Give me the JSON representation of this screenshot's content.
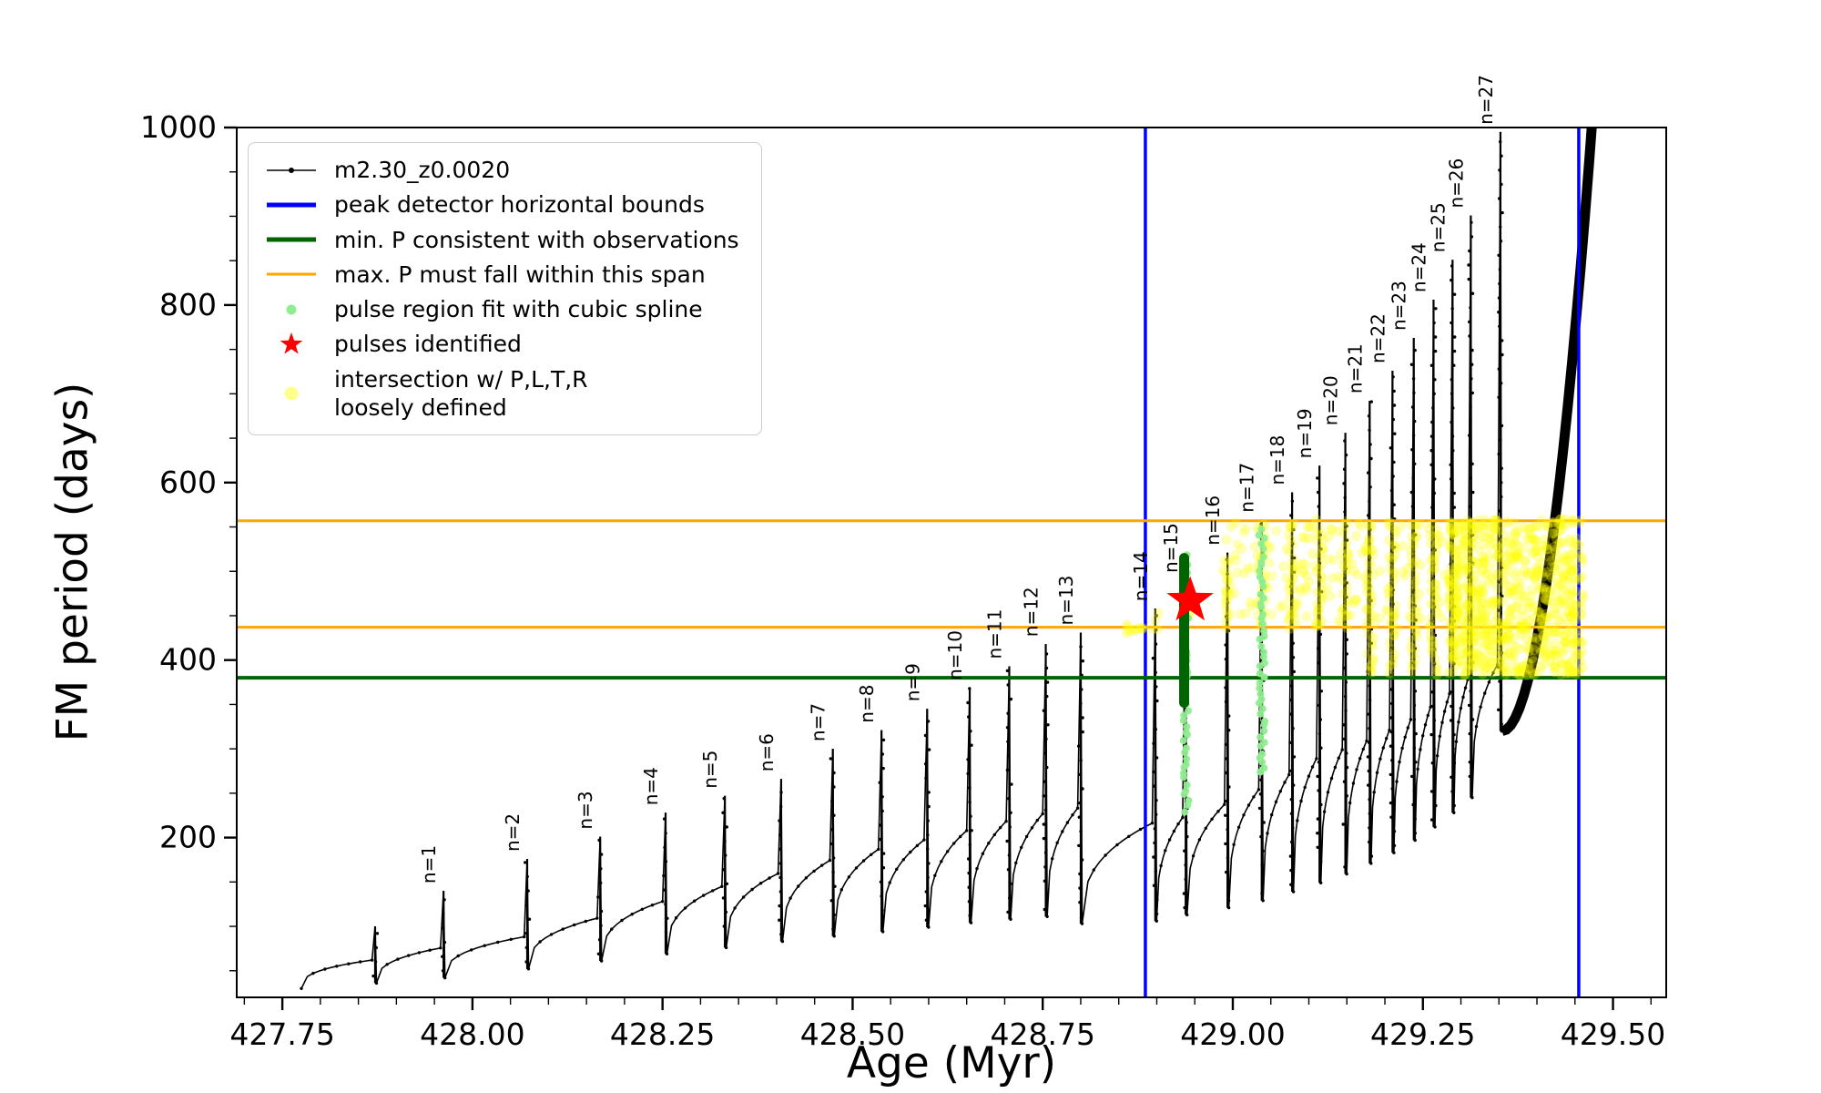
{
  "legend": {
    "items": [
      {
        "label": "m2.30_z0.0020",
        "color": "#000000",
        "marker": "line-with-dot"
      },
      {
        "label": "peak detector horizontal bounds",
        "color": "#0000ff",
        "marker": "thick-line"
      },
      {
        "label": "min. P consistent with observations",
        "color": "#006400",
        "marker": "thick-line"
      },
      {
        "label": "max. P must fall within this span",
        "color": "#ffa500",
        "marker": "line"
      },
      {
        "label": "pulse region fit with cubic spline",
        "color": "#90ee90",
        "marker": "dot"
      },
      {
        "label": "pulses identified",
        "color": "#ff0000",
        "marker": "star"
      },
      {
        "label": "intersection w/ P,L,T,R\nloosely defined",
        "color": "#ffff00",
        "marker": "large-dot"
      }
    ]
  },
  "chart_data": {
    "type": "line",
    "series_name": "m2.30_z0.0020",
    "xlabel": "Age (Myr)",
    "ylabel": "FM period (days)",
    "xlim": [
      427.69,
      429.57
    ],
    "ylim": [
      20,
      1000
    ],
    "xticks": [
      427.75,
      428.0,
      428.25,
      428.5,
      428.75,
      429.0,
      429.25,
      429.5
    ],
    "xtick_labels": [
      "427.75",
      "428.00",
      "428.25",
      "428.50",
      "428.75",
      "429.00",
      "429.25",
      "429.50"
    ],
    "yticks": [
      200,
      400,
      600,
      800,
      1000
    ],
    "ytick_labels": [
      "200",
      "400",
      "600",
      "800",
      "1000"
    ],
    "start": {
      "age": 427.775,
      "value": 30
    },
    "pulses": [
      {
        "n": 0,
        "label": "",
        "age": 427.872,
        "peak": 100,
        "base": 36
      },
      {
        "n": 1,
        "label": "n=1",
        "age": 427.962,
        "peak": 140,
        "base": 42
      },
      {
        "n": 2,
        "label": "n=2",
        "age": 428.072,
        "peak": 176,
        "base": 52
      },
      {
        "n": 3,
        "label": "n=3",
        "age": 428.168,
        "peak": 201,
        "base": 61
      },
      {
        "n": 4,
        "label": "n=4",
        "age": 428.254,
        "peak": 228,
        "base": 69
      },
      {
        "n": 5,
        "label": "n=5",
        "age": 428.332,
        "peak": 247,
        "base": 76
      },
      {
        "n": 6,
        "label": "n=6",
        "age": 428.406,
        "peak": 266,
        "base": 83
      },
      {
        "n": 7,
        "label": "n=7",
        "age": 428.474,
        "peak": 300,
        "base": 89
      },
      {
        "n": 8,
        "label": "n=8",
        "age": 428.538,
        "peak": 321,
        "base": 94
      },
      {
        "n": 9,
        "label": "n=9",
        "age": 428.598,
        "peak": 345,
        "base": 99
      },
      {
        "n": 10,
        "label": "n=10",
        "age": 428.654,
        "peak": 369,
        "base": 104
      },
      {
        "n": 11,
        "label": "n=11",
        "age": 428.706,
        "peak": 393,
        "base": 108
      },
      {
        "n": 12,
        "label": "n=12",
        "age": 428.754,
        "peak": 418,
        "base": 111
      },
      {
        "n": 13,
        "label": "n=13",
        "age": 428.8,
        "peak": 431,
        "base": 103
      },
      {
        "n": 14,
        "label": "n=14",
        "age": 428.898,
        "peak": 458,
        "base": 106
      },
      {
        "n": 15,
        "label": "n=15",
        "age": 428.938,
        "peak": 490,
        "base": 113
      },
      {
        "n": 16,
        "label": "n=16",
        "age": 428.993,
        "peak": 521,
        "base": 121
      },
      {
        "n": 17,
        "label": "n=17",
        "age": 429.038,
        "peak": 558,
        "base": 129
      },
      {
        "n": 18,
        "label": "n=18",
        "age": 429.078,
        "peak": 589,
        "base": 139
      },
      {
        "n": 19,
        "label": "n=19",
        "age": 429.114,
        "peak": 619,
        "base": 149
      },
      {
        "n": 20,
        "label": "n=20",
        "age": 429.148,
        "peak": 656,
        "base": 159
      },
      {
        "n": 21,
        "label": "n=21",
        "age": 429.18,
        "peak": 692,
        "base": 171
      },
      {
        "n": 22,
        "label": "n=22",
        "age": 429.21,
        "peak": 726,
        "base": 183
      },
      {
        "n": 23,
        "label": "n=23",
        "age": 429.238,
        "peak": 763,
        "base": 197
      },
      {
        "n": 24,
        "label": "n=24",
        "age": 429.264,
        "peak": 806,
        "base": 212
      },
      {
        "n": 25,
        "label": "n=25",
        "age": 429.289,
        "peak": 851,
        "base": 228
      },
      {
        "n": 26,
        "label": "n=26",
        "age": 429.313,
        "peak": 901,
        "base": 245
      },
      {
        "n": 27,
        "label": "n=27",
        "age": 429.352,
        "peak": 995,
        "base": 320
      }
    ],
    "final_rise": {
      "from_age": 429.354,
      "from_value": 320,
      "to_age": 429.492,
      "to_value": 1250
    },
    "blue_vlines": [
      428.885,
      429.455
    ],
    "green_hline": 380,
    "orange_hlines": [
      437,
      557
    ],
    "red_star": {
      "x": 428.944,
      "y": 467
    },
    "green_bar": {
      "x": 428.936,
      "ymin": 352,
      "ymax": 515
    },
    "spline_strips": [
      {
        "x": 428.938,
        "ymin": 230,
        "ymax": 520
      },
      {
        "x": 429.038,
        "ymin": 272,
        "ymax": 553
      }
    ],
    "yellow": {
      "strip_min_n": 14,
      "strip_y_range": [
        437,
        557
      ],
      "deep_strip_from_n": 21,
      "deep_strip_ymin": 386,
      "band": {
        "x": [
          428.99,
          429.3
        ],
        "y": [
          440,
          555
        ],
        "count": 150
      },
      "blob": {
        "x": [
          429.285,
          429.462
        ],
        "y": [
          382,
          560
        ],
        "count": 700
      },
      "cluster": {
        "x": [
          428.86,
          428.882
        ],
        "y": [
          430,
          445
        ],
        "count": 10
      }
    },
    "colors": {
      "series": "#000000",
      "bounds": "#0000ff",
      "min_p": "#006400",
      "max_p": "#ffa500",
      "spline": "#90ee90",
      "pulses": "#ff0000",
      "intersection": "#ffff00"
    }
  }
}
